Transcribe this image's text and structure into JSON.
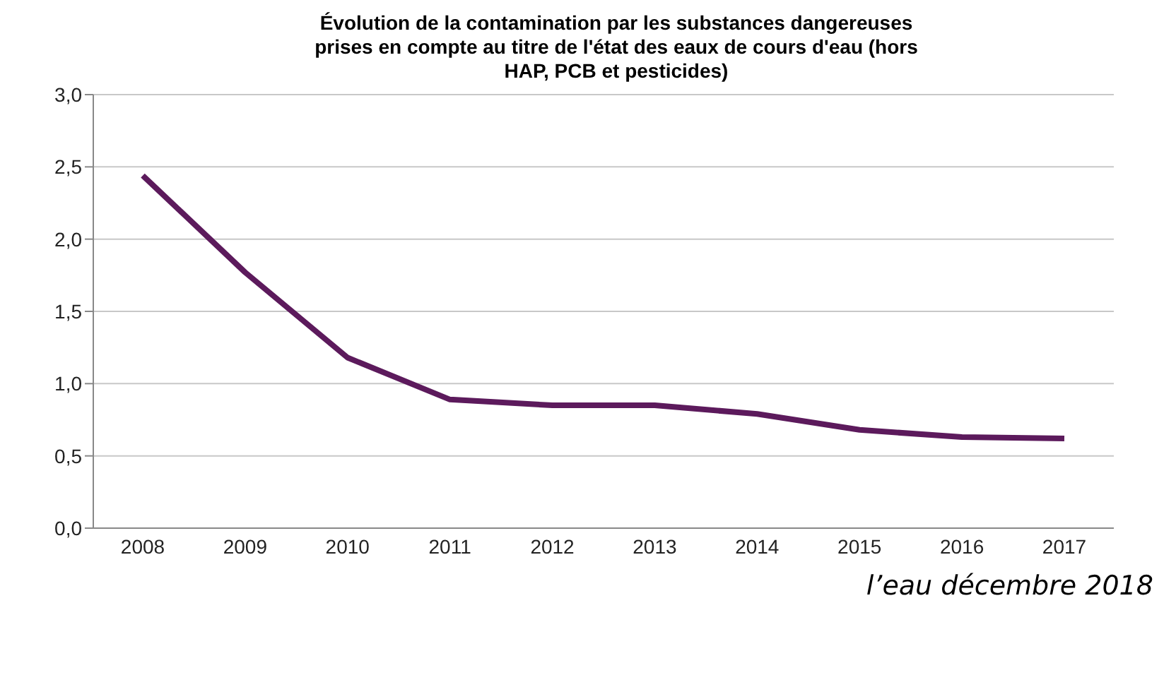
{
  "chart_data": {
    "type": "line",
    "title": "Évolution de la contamination par les substances dangereuses\nprises en compte au titre de l'état des eaux de cours d'eau (hors\nHAP, PCB et pesticides)",
    "categories": [
      "2008",
      "2009",
      "2010",
      "2011",
      "2012",
      "2013",
      "2014",
      "2015",
      "2016",
      "2017"
    ],
    "series": [
      {
        "color": "#5c1a5c",
        "values": [
          2.44,
          1.77,
          1.18,
          0.89,
          0.85,
          0.85,
          0.79,
          0.68,
          0.63,
          0.62
        ]
      }
    ],
    "ylim": [
      0,
      3
    ],
    "yticks": [
      {
        "value": 0,
        "label": "0,0"
      },
      {
        "value": 0.5,
        "label": "0,5"
      },
      {
        "value": 1,
        "label": "1,0"
      },
      {
        "value": 1.5,
        "label": "1,5"
      },
      {
        "value": 2,
        "label": "2,0"
      },
      {
        "value": 2.5,
        "label": "2,5"
      },
      {
        "value": 3,
        "label": "3,0"
      }
    ],
    "grid": "y",
    "legend": false,
    "marker": "none",
    "line_style": "solid",
    "annotations": [
      "l’eau décembre 2018"
    ]
  }
}
